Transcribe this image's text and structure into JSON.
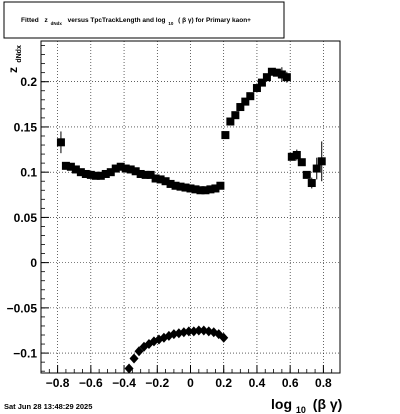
{
  "title": {
    "prefix": "Fitted",
    "z_symbol": "z",
    "z_subscript": "dNdx",
    "middle": "versus TpcTrackLength and log",
    "log_subscript": "10",
    "suffix": "( β γ) for Primary kaon+"
  },
  "timestamp": "Sat Jun 28 13:48:29 2025",
  "colors": {
    "marker": "#000000",
    "grid": "#000000",
    "frame": "#000000"
  },
  "chart_data": {
    "type": "scatter",
    "title": "Fitted z_dNdx versus TpcTrackLength and log10(βγ) for Primary kaon+",
    "xlabel": {
      "main": "log",
      "sub": "10",
      "tail": "(β γ)"
    },
    "ylabel": {
      "main": "z",
      "sub": "dNdx"
    },
    "xlim": [
      -0.9,
      0.9
    ],
    "ylim": [
      -0.122,
      0.245
    ],
    "grid": true,
    "x_ticks": [
      -0.8,
      -0.6,
      -0.4,
      -0.2,
      0,
      0.2,
      0.4,
      0.6,
      0.8
    ],
    "x_tick_labels": [
      "−0.8",
      "−0.6",
      "−0.4",
      "−0.2",
      "0",
      "0.2",
      "0.4",
      "0.6",
      "0.8"
    ],
    "y_ticks": [
      -0.1,
      -0.05,
      0,
      0.05,
      0.1,
      0.15,
      0.2
    ],
    "y_tick_labels": [
      "−0.1",
      "−0.05",
      "0",
      "0.05",
      "0.1",
      "0.15",
      "0.2"
    ],
    "series": [
      {
        "marker": "square",
        "points": [
          {
            "x": -0.78,
            "y": 0.133,
            "err": 0.012
          },
          {
            "x": -0.75,
            "y": 0.107
          },
          {
            "x": -0.72,
            "y": 0.106
          },
          {
            "x": -0.69,
            "y": 0.103
          },
          {
            "x": -0.66,
            "y": 0.1
          },
          {
            "x": -0.63,
            "y": 0.098
          },
          {
            "x": -0.6,
            "y": 0.097
          },
          {
            "x": -0.57,
            "y": 0.096
          },
          {
            "x": -0.54,
            "y": 0.096
          },
          {
            "x": -0.51,
            "y": 0.098
          },
          {
            "x": -0.48,
            "y": 0.1
          },
          {
            "x": -0.45,
            "y": 0.104
          },
          {
            "x": -0.42,
            "y": 0.106
          },
          {
            "x": -0.39,
            "y": 0.104
          },
          {
            "x": -0.36,
            "y": 0.103
          },
          {
            "x": -0.33,
            "y": 0.101
          },
          {
            "x": -0.3,
            "y": 0.098
          },
          {
            "x": -0.27,
            "y": 0.097
          },
          {
            "x": -0.24,
            "y": 0.097
          },
          {
            "x": -0.21,
            "y": 0.093
          },
          {
            "x": -0.18,
            "y": 0.092
          },
          {
            "x": -0.15,
            "y": 0.09
          },
          {
            "x": -0.12,
            "y": 0.087
          },
          {
            "x": -0.09,
            "y": 0.085
          },
          {
            "x": -0.06,
            "y": 0.084
          },
          {
            "x": -0.03,
            "y": 0.083
          },
          {
            "x": 0.0,
            "y": 0.082
          },
          {
            "x": 0.03,
            "y": 0.081
          },
          {
            "x": 0.06,
            "y": 0.08
          },
          {
            "x": 0.09,
            "y": 0.08
          },
          {
            "x": 0.12,
            "y": 0.081
          },
          {
            "x": 0.15,
            "y": 0.082
          },
          {
            "x": 0.18,
            "y": 0.085
          },
          {
            "x": 0.21,
            "y": 0.141
          },
          {
            "x": 0.24,
            "y": 0.156
          },
          {
            "x": 0.27,
            "y": 0.163
          },
          {
            "x": 0.3,
            "y": 0.172
          },
          {
            "x": 0.33,
            "y": 0.178
          },
          {
            "x": 0.36,
            "y": 0.184
          },
          {
            "x": 0.4,
            "y": 0.193
          },
          {
            "x": 0.43,
            "y": 0.199
          },
          {
            "x": 0.46,
            "y": 0.205
          },
          {
            "x": 0.49,
            "y": 0.211
          },
          {
            "x": 0.52,
            "y": 0.21
          },
          {
            "x": 0.55,
            "y": 0.208,
            "err": 0.008
          },
          {
            "x": 0.58,
            "y": 0.205,
            "err": 0.006
          },
          {
            "x": 0.61,
            "y": 0.117
          },
          {
            "x": 0.64,
            "y": 0.119,
            "err": 0.006
          },
          {
            "x": 0.67,
            "y": 0.111
          },
          {
            "x": 0.7,
            "y": 0.097
          },
          {
            "x": 0.73,
            "y": 0.088,
            "err": 0.006
          },
          {
            "x": 0.76,
            "y": 0.104,
            "err": 0.012
          },
          {
            "x": 0.79,
            "y": 0.112,
            "err": 0.022
          }
        ]
      },
      {
        "marker": "diamond",
        "points": [
          {
            "x": -0.37,
            "y": -0.117
          },
          {
            "x": -0.34,
            "y": -0.106
          },
          {
            "x": -0.31,
            "y": -0.098
          },
          {
            "x": -0.28,
            "y": -0.093
          },
          {
            "x": -0.25,
            "y": -0.09
          },
          {
            "x": -0.22,
            "y": -0.087
          },
          {
            "x": -0.19,
            "y": -0.085
          },
          {
            "x": -0.16,
            "y": -0.083
          },
          {
            "x": -0.13,
            "y": -0.081
          },
          {
            "x": -0.1,
            "y": -0.079
          },
          {
            "x": -0.07,
            "y": -0.078
          },
          {
            "x": -0.04,
            "y": -0.077
          },
          {
            "x": -0.01,
            "y": -0.076
          },
          {
            "x": 0.02,
            "y": -0.076
          },
          {
            "x": 0.05,
            "y": -0.075
          },
          {
            "x": 0.08,
            "y": -0.075
          },
          {
            "x": 0.11,
            "y": -0.076
          },
          {
            "x": 0.14,
            "y": -0.077
          },
          {
            "x": 0.17,
            "y": -0.079
          },
          {
            "x": 0.2,
            "y": -0.083
          }
        ]
      }
    ]
  }
}
